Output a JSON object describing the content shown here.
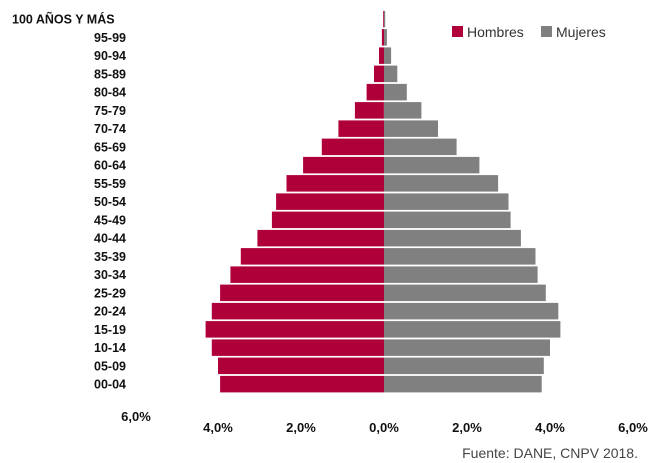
{
  "chart_data": {
    "type": "bar",
    "orientation": "horizontal",
    "subtype": "population-pyramid",
    "categories": [
      "00-04",
      "05-09",
      "10-14",
      "15-19",
      "20-24",
      "25-29",
      "30-34",
      "35-39",
      "40-44",
      "45-49",
      "50-54",
      "55-59",
      "60-64",
      "65-69",
      "70-74",
      "75-79",
      "80-84",
      "85-89",
      "90-94",
      "95-99",
      "100 AÑOS Y MÁS"
    ],
    "series": [
      {
        "name": "Hombres",
        "color": "#b0003a",
        "side": "left",
        "values": [
          3.95,
          4.0,
          4.15,
          4.3,
          4.15,
          3.95,
          3.7,
          3.45,
          3.05,
          2.7,
          2.6,
          2.35,
          1.95,
          1.5,
          1.1,
          0.7,
          0.42,
          0.24,
          0.12,
          0.05,
          0.02
        ]
      },
      {
        "name": "Mujeres",
        "color": "#808080",
        "side": "right",
        "values": [
          3.8,
          3.85,
          4.0,
          4.25,
          4.2,
          3.9,
          3.7,
          3.65,
          3.3,
          3.05,
          3.0,
          2.75,
          2.3,
          1.75,
          1.3,
          0.9,
          0.55,
          0.32,
          0.17,
          0.07,
          0.03
        ]
      }
    ],
    "xlim": [
      -6,
      6
    ],
    "tick_labels": [
      "6,0%",
      "4,0%",
      "2,0%",
      "0,0%",
      "2,0%",
      "4,0%",
      "6,0%"
    ],
    "tick_values": [
      -6,
      -4,
      -2,
      0,
      2,
      4,
      6
    ],
    "legend": {
      "placement": "top-right",
      "items": [
        {
          "label": "Hombres",
          "color": "#b0003a"
        },
        {
          "label": "Mujeres",
          "color": "#808080"
        }
      ]
    },
    "grid": false,
    "source": "Fuente: DANE, CNPV 2018."
  }
}
